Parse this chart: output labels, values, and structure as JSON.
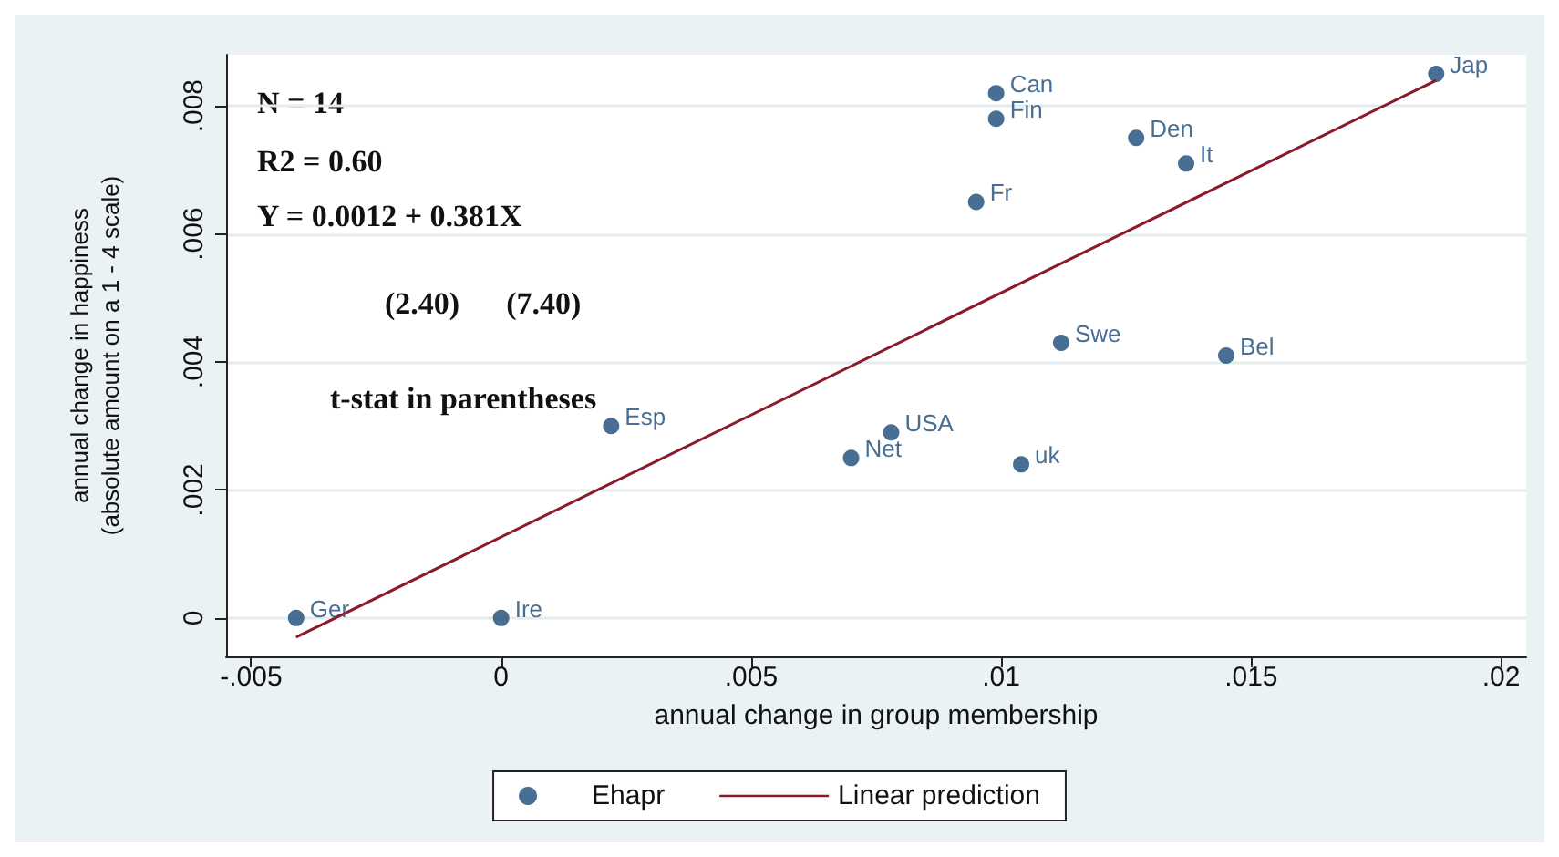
{
  "chart_data": {
    "type": "scatter",
    "xlabel": "annual change in group membership",
    "ylabel": "annual change in happiness\n(absolute amount on a 1 - 4 scale)",
    "xlim": [
      -0.0055,
      0.0205
    ],
    "xticks": [
      {
        "value": -0.005,
        "label": "-.005"
      },
      0,
      {
        "value": 0.005,
        "label": ".005"
      },
      {
        "value": 0.01,
        "label": ".01"
      },
      {
        "value": 0.015,
        "label": ".015"
      },
      {
        "value": 0.02,
        "label": ".02"
      }
    ],
    "ylim": [
      -0.0006,
      0.0088
    ],
    "yticks": [
      0,
      {
        "value": 0.002,
        "label": ".002"
      },
      {
        "value": 0.004,
        "label": ".004"
      },
      {
        "value": 0.006,
        "label": ".006"
      },
      {
        "value": 0.008,
        "label": ".008"
      }
    ],
    "grid": "y",
    "legend": "bottom",
    "series": [
      {
        "name": "Ehapr",
        "marker": "circle",
        "color": "#1a4a78",
        "x": [
          -0.0041,
          0,
          0.0022,
          0.0078,
          0.007,
          0.0104,
          0.0112,
          0.0145,
          0.0095,
          0.0099,
          0.0099,
          0.0127,
          0.0137,
          0.0187
        ],
        "values": [
          0,
          0,
          0.003,
          0.0029,
          0.0025,
          0.0024,
          0.0043,
          0.0041,
          0.0065,
          0.0082,
          0.0078,
          0.0075,
          0.0071,
          0.0085
        ],
        "value_labels": [
          "Ger",
          "Ire",
          "Esp",
          "USA",
          "Net",
          "uk",
          "Swe",
          "Bel",
          "Fr",
          "Can",
          "Fin",
          "Den",
          "It",
          "Jap"
        ]
      },
      {
        "name": "Linear prediction",
        "type": "line",
        "marker": "none",
        "color": "#8b1a2b",
        "x": [
          -0.0041,
          0.0187
        ],
        "values": [
          -0.0003,
          0.0084
        ]
      }
    ],
    "annotations": [
      "N = 14",
      "R2 = 0.60",
      "Y = 0.0012 + 0.381X",
      "(2.40)      (7.40)",
      "t-stat in parentheses"
    ]
  }
}
